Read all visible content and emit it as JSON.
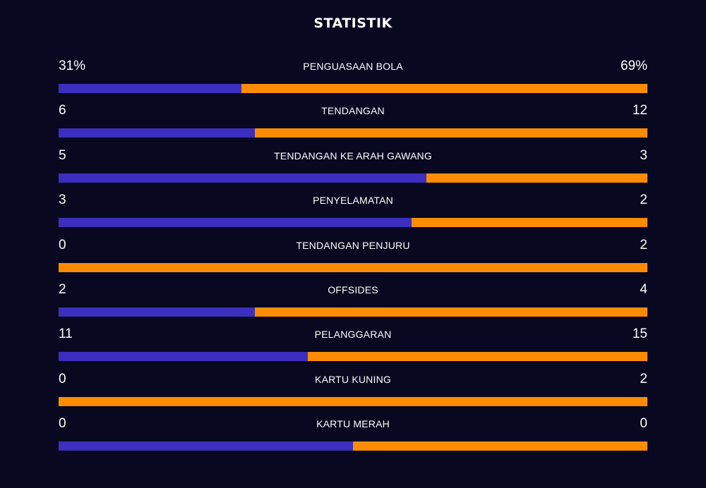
{
  "title": "STATISTIK",
  "colors": {
    "background": "#080820",
    "home": "#3c2fbf",
    "away": "#ff8c00",
    "text": "#ffffff"
  },
  "stats": [
    {
      "label": "PENGUASAAN BOLA",
      "home": "31%",
      "away": "69%",
      "home_share": 0.31
    },
    {
      "label": "TENDANGAN",
      "home": "6",
      "away": "12",
      "home_share": 0.3333
    },
    {
      "label": "TENDANGAN KE ARAH GAWANG",
      "home": "5",
      "away": "3",
      "home_share": 0.625
    },
    {
      "label": "PENYELAMATAN",
      "home": "3",
      "away": "2",
      "home_share": 0.6
    },
    {
      "label": "TENDANGAN PENJURU",
      "home": "0",
      "away": "2",
      "home_share": 0
    },
    {
      "label": "OFFSIDES",
      "home": "2",
      "away": "4",
      "home_share": 0.3333
    },
    {
      "label": "PELANGGARAN",
      "home": "11",
      "away": "15",
      "home_share": 0.4231
    },
    {
      "label": "KARTU KUNING",
      "home": "0",
      "away": "2",
      "home_share": 0
    },
    {
      "label": "KARTU MERAH",
      "home": "0",
      "away": "0",
      "home_share": 0.5
    }
  ]
}
